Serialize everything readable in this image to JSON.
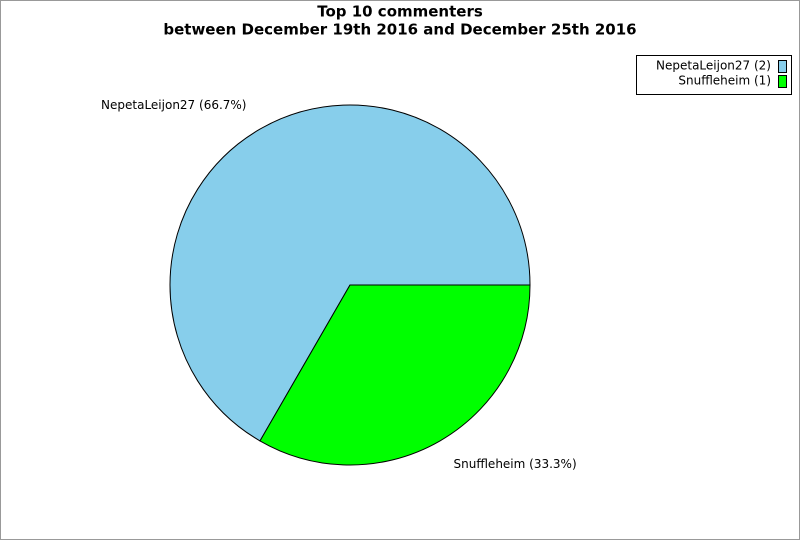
{
  "chart_data": {
    "type": "pie",
    "title": "Top 10 commenters",
    "subtitle": "between December 19th 2016 and December 25th 2016",
    "categories": [
      "NepetaLeijon27",
      "Snuffleheim"
    ],
    "values": [
      2,
      1
    ],
    "colors": [
      "#87ceeb",
      "#00ff00"
    ],
    "slice_labels": [
      "NepetaLeijon27 (66.7%)",
      "Snuffleheim (33.3%)"
    ],
    "legend_labels": [
      "NepetaLeijon27 (2)",
      "Snuffleheim (1)"
    ],
    "legend": "top-right"
  }
}
